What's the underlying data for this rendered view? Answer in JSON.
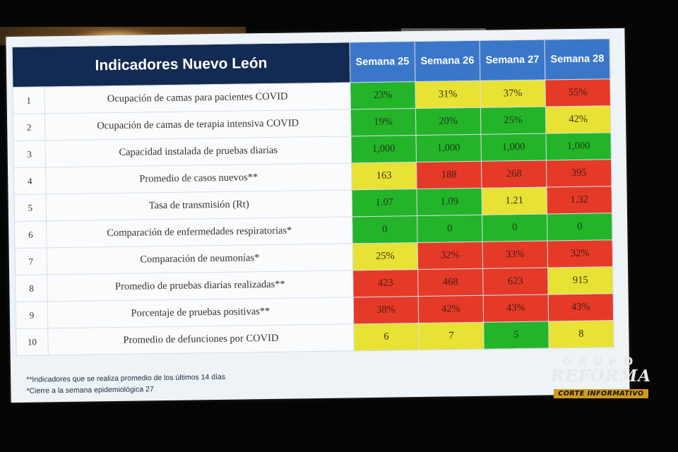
{
  "chart_data": {
    "type": "table",
    "title": "Indicadores Nuevo León",
    "columns": [
      "Semana 25",
      "Semana 26",
      "Semana 27",
      "Semana 28"
    ],
    "rows": [
      {
        "num": "1",
        "name": "Ocupación de camas para pacientes COVID",
        "values": [
          "23%",
          "31%",
          "37%",
          "55%"
        ],
        "colors": [
          "green",
          "yellow",
          "yellow",
          "red"
        ]
      },
      {
        "num": "2",
        "name": "Ocupación de camas de terapia intensiva COVID",
        "values": [
          "19%",
          "20%",
          "25%",
          "42%"
        ],
        "colors": [
          "green",
          "green",
          "green",
          "yellow"
        ]
      },
      {
        "num": "3",
        "name": "Capacidad instalada de pruebas diarias",
        "values": [
          "1,000",
          "1,000",
          "1,000",
          "1,000"
        ],
        "colors": [
          "green",
          "green",
          "green",
          "green"
        ]
      },
      {
        "num": "4",
        "name": "Promedio de casos nuevos**",
        "values": [
          "163",
          "188",
          "268",
          "395"
        ],
        "colors": [
          "yellow",
          "red",
          "red",
          "red"
        ]
      },
      {
        "num": "5",
        "name": "Tasa de transmisión (Rt)",
        "values": [
          "1.07",
          "1.09",
          "1.21",
          "1.32"
        ],
        "colors": [
          "green",
          "green",
          "yellow",
          "red"
        ]
      },
      {
        "num": "6",
        "name": "Comparación de enfermedades respiratorias*",
        "values": [
          "0",
          "0",
          "0",
          "0"
        ],
        "colors": [
          "green",
          "green",
          "green",
          "green"
        ]
      },
      {
        "num": "7",
        "name": "Comparación de neumonías*",
        "values": [
          "25%",
          "32%",
          "33%",
          "32%"
        ],
        "colors": [
          "yellow",
          "red",
          "red",
          "red"
        ]
      },
      {
        "num": "8",
        "name": "Promedio de pruebas diarias realizadas**",
        "values": [
          "423",
          "468",
          "623",
          "915"
        ],
        "colors": [
          "red",
          "red",
          "red",
          "yellow"
        ]
      },
      {
        "num": "9",
        "name": "Porcentaje de pruebas positivas**",
        "values": [
          "38%",
          "42%",
          "43%",
          "43%"
        ],
        "colors": [
          "red",
          "red",
          "red",
          "red"
        ]
      },
      {
        "num": "10",
        "name": "Promedio de defunciones por COVID",
        "values": [
          "6",
          "7",
          "5",
          "8"
        ],
        "colors": [
          "yellow",
          "yellow",
          "green",
          "yellow"
        ]
      }
    ]
  },
  "notes": [
    "**Indicadores que se realiza promedio de los últimos 14 días",
    "*Cierre a la semana epidemiológica 27"
  ],
  "logo": {
    "grupo": "GRUPO",
    "reforma": "REFORMA",
    "corte": "CORTE INFORMATIVO"
  }
}
